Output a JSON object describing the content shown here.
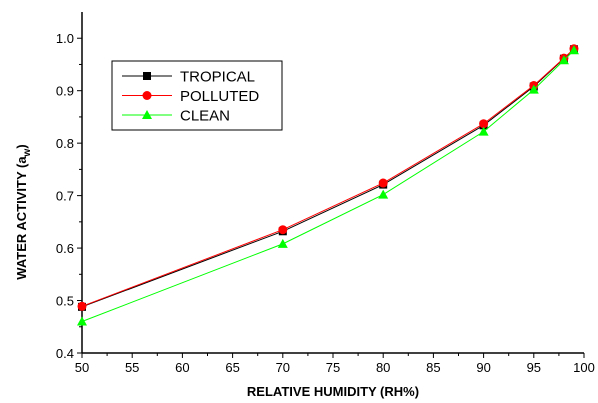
{
  "chart_data": {
    "type": "line",
    "xlabel": "RELATIVE HUMIDITY (RH%)",
    "ylabel_main": "WATER ACTIVITY (a",
    "ylabel_sub": "w",
    "ylabel_close": ")",
    "xlim": [
      50,
      100
    ],
    "ylim": [
      0.4,
      1.05
    ],
    "xticks": [
      50,
      55,
      60,
      65,
      70,
      75,
      80,
      85,
      90,
      95,
      100
    ],
    "yticks": [
      0.4,
      0.5,
      0.6,
      0.7,
      0.8,
      0.9,
      1.0
    ],
    "legend_position": "upper-left",
    "grid": false,
    "series": [
      {
        "name": "TROPICAL",
        "color": "#000000",
        "marker": "square",
        "x": [
          50,
          70,
          80,
          90,
          95,
          98,
          99
        ],
        "y": [
          0.488,
          0.632,
          0.721,
          0.834,
          0.908,
          0.961,
          0.979
        ]
      },
      {
        "name": "POLLUTED",
        "color": "#ff0000",
        "marker": "circle",
        "x": [
          50,
          70,
          80,
          90,
          95,
          98,
          99
        ],
        "y": [
          0.489,
          0.635,
          0.724,
          0.837,
          0.91,
          0.962,
          0.98
        ]
      },
      {
        "name": "CLEAN",
        "color": "#00ff00",
        "marker": "triangle",
        "x": [
          50,
          70,
          80,
          90,
          95,
          98,
          99
        ],
        "y": [
          0.46,
          0.608,
          0.702,
          0.822,
          0.902,
          0.958,
          0.977
        ]
      }
    ]
  }
}
